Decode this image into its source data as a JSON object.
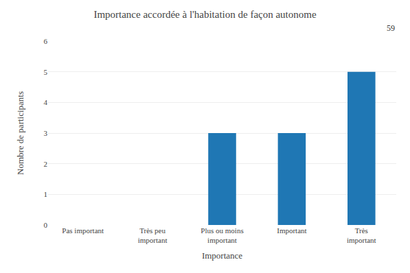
{
  "chart_data": {
    "type": "bar",
    "title": "Importance accordée à l'habitation de façon autonome",
    "categories": [
      "Pas important",
      "Très peu\nimportant",
      "Plus ou moins\nimportant",
      "Important",
      "Très\nimportant"
    ],
    "values": [
      0,
      0,
      3,
      3,
      5
    ],
    "xlabel": "Importance",
    "ylabel": "Nombre de participants",
    "ylim": [
      0,
      6
    ],
    "yticks": [
      0,
      1,
      2,
      3,
      4,
      5,
      6
    ],
    "grid": true,
    "annotations": [
      "59"
    ]
  }
}
